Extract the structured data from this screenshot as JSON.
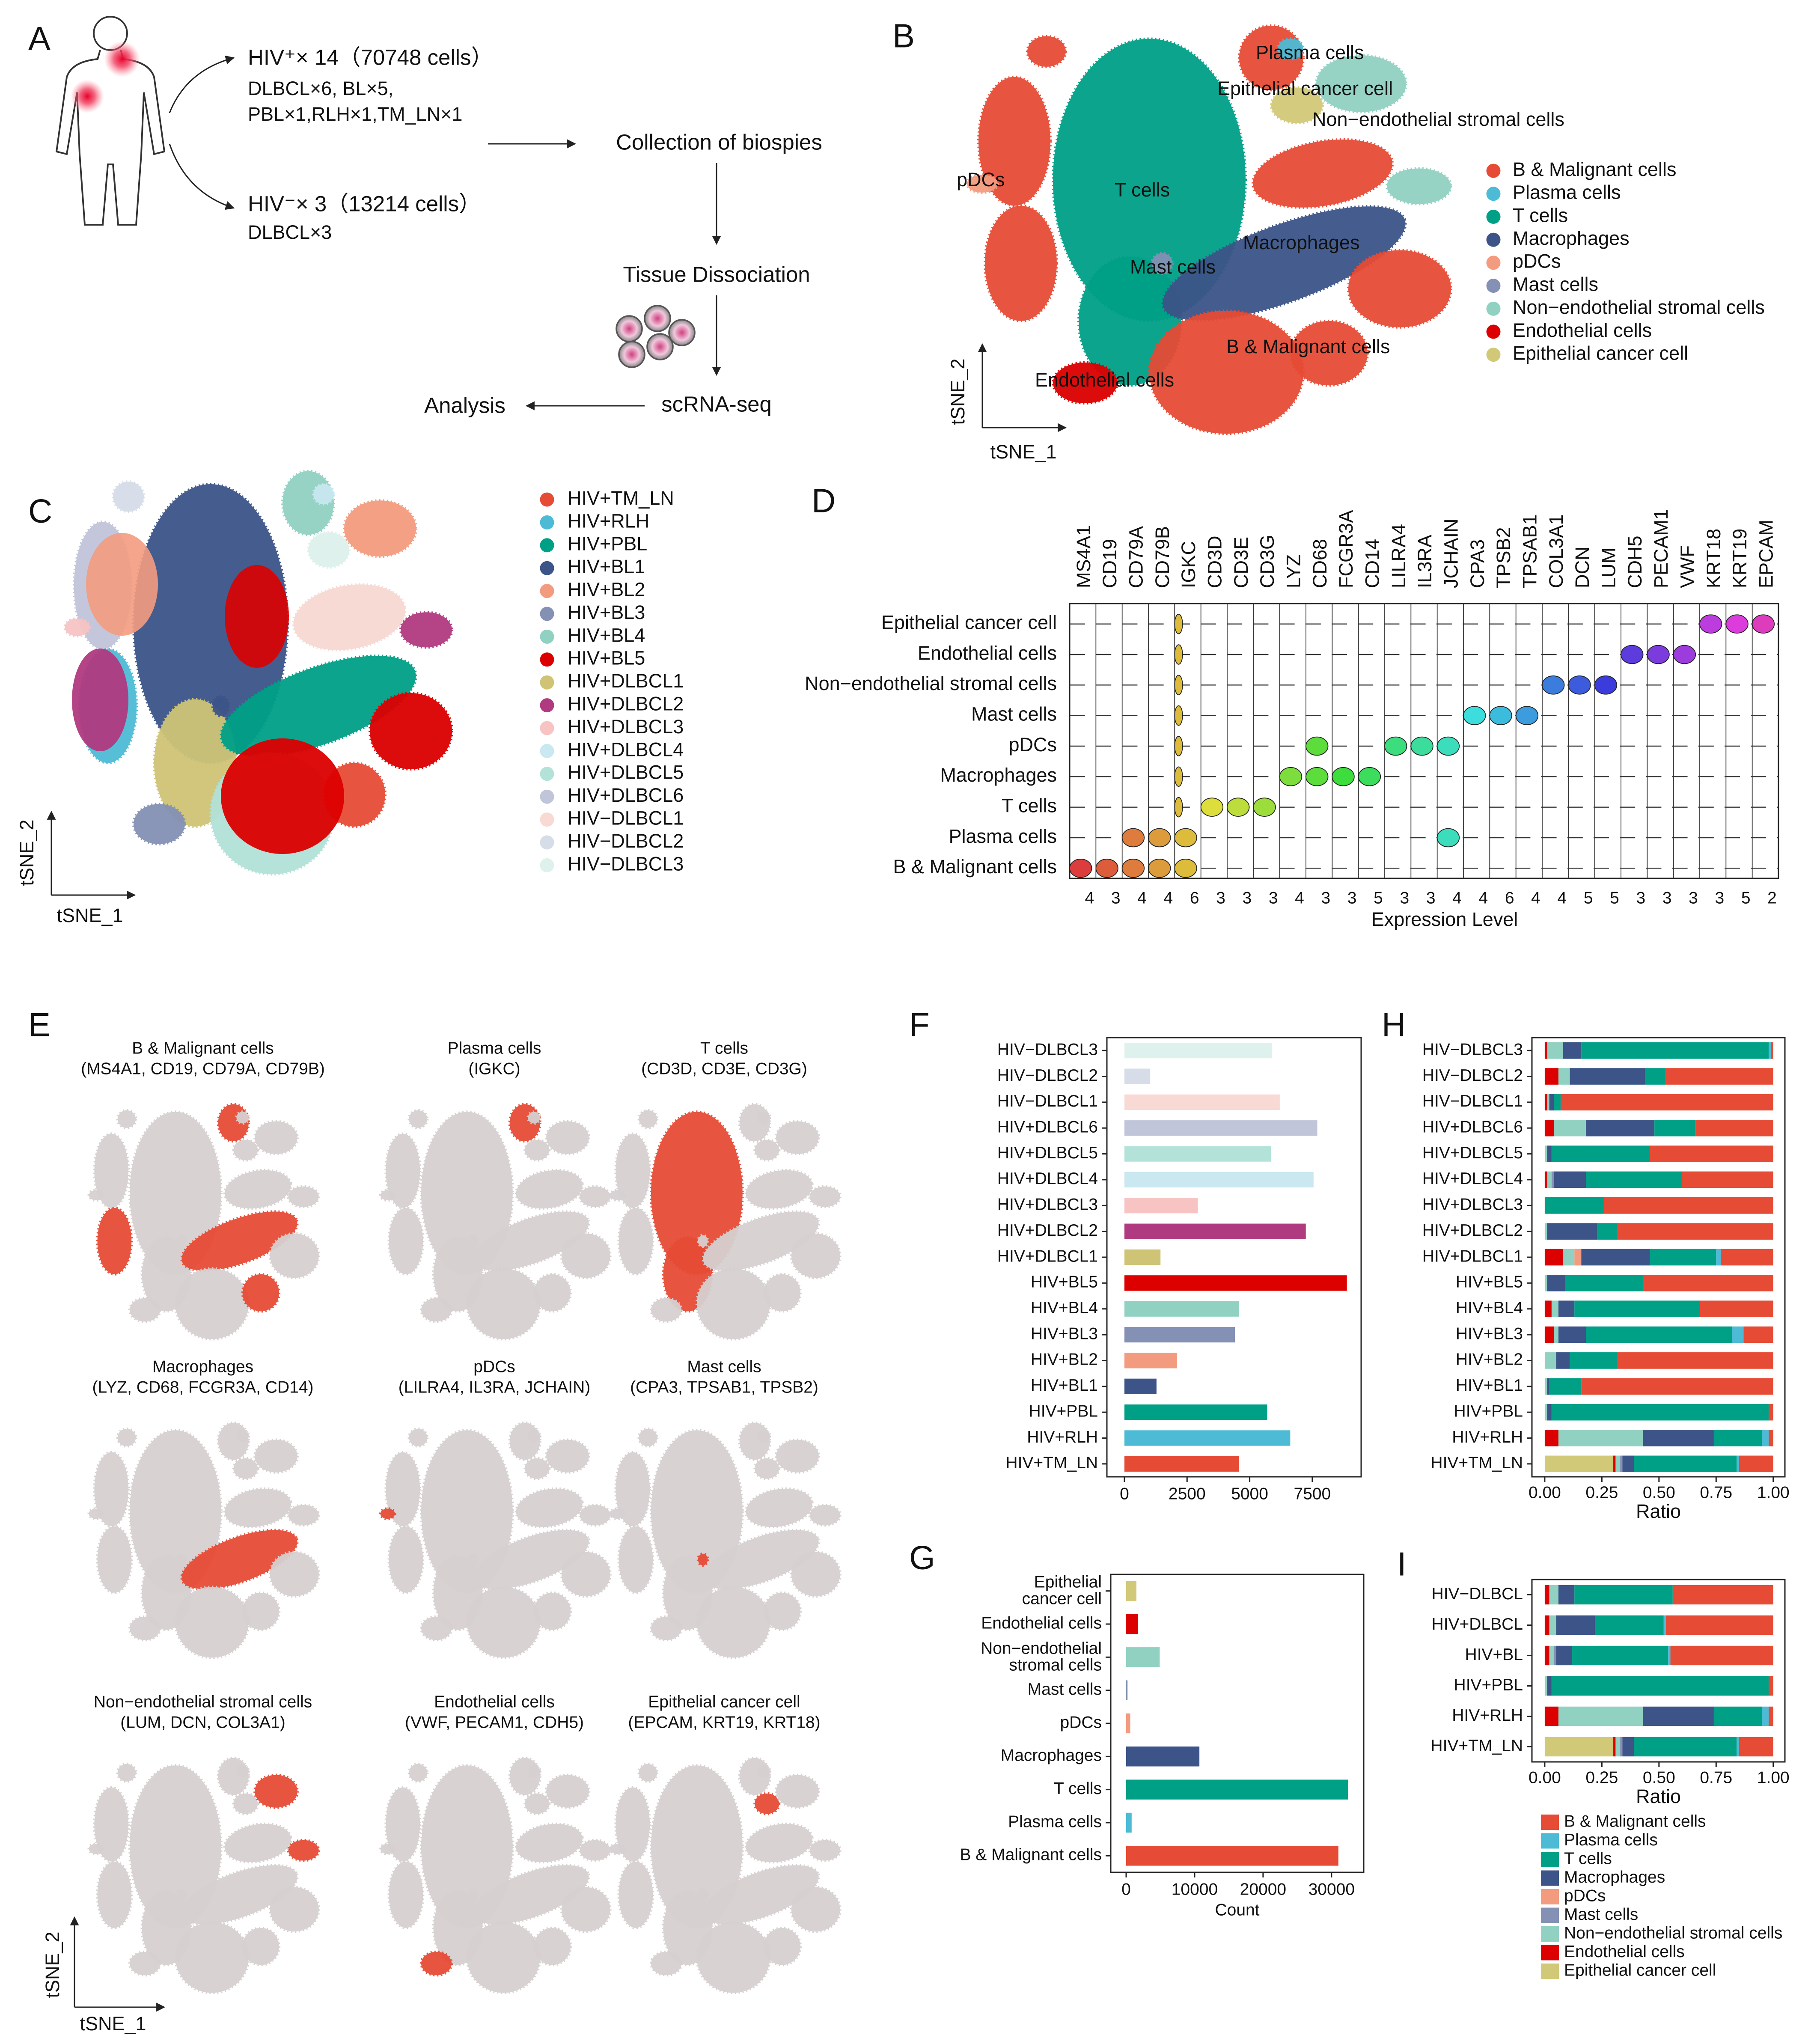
{
  "panel_labels": [
    "A",
    "B",
    "C",
    "D",
    "E",
    "F",
    "G",
    "H",
    "I"
  ],
  "panel_a": {
    "hiv_pos": "HIV⁺× 14（70748 cells）",
    "hiv_pos_detail": [
      "DLBCL×6, BL×5,",
      "PBL×1,RLH×1,TM_LN×1"
    ],
    "hiv_neg": "HIV⁻× 3（13214 cells）",
    "hiv_neg_detail": "DLBCL×3",
    "steps": [
      "Collection of biospies",
      "Tissue Dissociation",
      "scRNA-seq",
      "Analysis"
    ]
  },
  "chart_data": [
    {
      "type": "tsne",
      "xlabel": "tSNE_1",
      "ylabel": "tSNE_2",
      "cluster_labels": [
        "Plasma cells",
        "Epithelial cancer cell",
        "Non−endothelial stromal cells",
        "pDCs",
        "T cells",
        "Macrophages",
        "Mast cells",
        "B & Malignant cells",
        "Endothelial cells"
      ],
      "series": [
        {
          "name": "B & Malignant cells",
          "color": "#e64b35"
        },
        {
          "name": "Plasma cells",
          "color": "#4dbbd5"
        },
        {
          "name": "T cells",
          "color": "#00a087"
        },
        {
          "name": "Macrophages",
          "color": "#3c5488"
        },
        {
          "name": "pDCs",
          "color": "#f39b7f"
        },
        {
          "name": "Mast cells",
          "color": "#8491b4"
        },
        {
          "name": "Non−endothelial stromal cells",
          "color": "#91d1c2"
        },
        {
          "name": "Endothelial cells",
          "color": "#dc0000"
        },
        {
          "name": "Epithelial cancer cell",
          "color": "#d2c978"
        }
      ]
    },
    {
      "type": "tsne",
      "xlabel": "tSNE_1",
      "ylabel": "tSNE_2",
      "series": [
        {
          "name": "HIV+TM_LN",
          "color": "#e64b35"
        },
        {
          "name": "HIV+RLH",
          "color": "#4dbbd5"
        },
        {
          "name": "HIV+PBL",
          "color": "#00a087"
        },
        {
          "name": "HIV+BL1",
          "color": "#3c5488"
        },
        {
          "name": "HIV+BL2",
          "color": "#f39b7f"
        },
        {
          "name": "HIV+BL3",
          "color": "#8491b4"
        },
        {
          "name": "HIV+BL4",
          "color": "#91d1c2"
        },
        {
          "name": "HIV+BL5",
          "color": "#dc0000"
        },
        {
          "name": "HIV+DLBCL1",
          "color": "#cfc476"
        },
        {
          "name": "HIV+DLBCL2",
          "color": "#b03a80"
        },
        {
          "name": "HIV+DLBCL3",
          "color": "#f7c3c3"
        },
        {
          "name": "HIV+DLBCL4",
          "color": "#c9e8f0"
        },
        {
          "name": "HIV+DLBCL5",
          "color": "#b3e2d8"
        },
        {
          "name": "HIV+DLBCL6",
          "color": "#c1c5da"
        },
        {
          "name": "HIV−DLBCL1",
          "color": "#f8d9d3"
        },
        {
          "name": "HIV−DLBCL2",
          "color": "#d6dde8"
        },
        {
          "name": "HIV−DLBCL3",
          "color": "#def1ec"
        }
      ]
    },
    {
      "type": "violin",
      "xlabel": "Expression Level",
      "genes": [
        "MS4A1",
        "CD19",
        "CD79A",
        "CD79B",
        "IGKC",
        "CD3D",
        "CD3E",
        "CD3G",
        "LYZ",
        "CD68",
        "FCGR3A",
        "CD14",
        "LILRA4",
        "IL3RA",
        "JCHAIN",
        "CPA3",
        "TPSB2",
        "TPSAB1",
        "COL3A1",
        "DCN",
        "LUM",
        "CDH5",
        "PECAM1",
        "VWF",
        "KRT18",
        "KRT19",
        "EPCAM"
      ],
      "cell_types": [
        "Epithelial cancer cell",
        "Endothelial cells",
        "Non−endothelial stromal cells",
        "Mast cells",
        "pDCs",
        "Macrophages",
        "T cells",
        "Plasma cells",
        "B & Malignant cells"
      ],
      "axis_max": [
        4,
        3,
        4,
        4,
        6,
        3,
        3,
        3,
        4,
        3,
        3,
        5,
        3,
        3,
        4,
        4,
        6,
        4,
        4,
        5,
        5,
        3,
        3,
        3,
        3,
        5,
        2
      ]
    },
    {
      "type": "feature",
      "xlabel": "tSNE_1",
      "ylabel": "tSNE_2",
      "color": "#e64b35",
      "panels": [
        {
          "title": "B & Malignant cells",
          "genes": "(MS4A1, CD19, CD79A, CD79B)"
        },
        {
          "title": "Plasma cells",
          "genes": "(IGKC)"
        },
        {
          "title": "T cells",
          "genes": "(CD3D, CD3E, CD3G)"
        },
        {
          "title": "Macrophages",
          "genes": "(LYZ, CD68, FCGR3A, CD14)"
        },
        {
          "title": "pDCs",
          "genes": "(LILRA4, IL3RA, JCHAIN)"
        },
        {
          "title": "Mast cells",
          "genes": "(CPA3, TPSAB1, TPSB2)"
        },
        {
          "title": "Non−endothelial stromal cells",
          "genes": "(LUM, DCN, COL3A1)"
        },
        {
          "title": "Endothelial cells",
          "genes": "(VWF, PECAM1, CDH5)"
        },
        {
          "title": "Epithelial cancer cell",
          "genes": "(EPCAM, KRT19, KRT18)"
        }
      ]
    },
    {
      "type": "barh",
      "categories": [
        "HIV−DLBCL3",
        "HIV−DLBCL2",
        "HIV−DLBCL1",
        "HIV+DLBCL6",
        "HIV+DLBCL5",
        "HIV+DLBCL4",
        "HIV+DLBCL3",
        "HIV+DLBCL2",
        "HIV+DLBCL1",
        "HIV+BL5",
        "HIV+BL4",
        "HIV+BL3",
        "HIV+BL2",
        "HIV+BL1",
        "HIV+PBL",
        "HIV+RLH",
        "HIV+TM_LN"
      ],
      "values": [
        5900,
        1030,
        6200,
        7700,
        5850,
        7550,
        2930,
        7240,
        1440,
        8880,
        4570,
        4410,
        2100,
        1280,
        5700,
        6620,
        4570
      ],
      "colors": [
        "#def1ec",
        "#d6dde8",
        "#f8d9d3",
        "#c1c5da",
        "#b3e2d8",
        "#c9e8f0",
        "#f7c3c3",
        "#b03a80",
        "#cfc476",
        "#dc0000",
        "#91d1c2",
        "#8491b4",
        "#f39b7f",
        "#3c5488",
        "#00a087",
        "#4dbbd5",
        "#e64b35"
      ],
      "xlim": [
        -700,
        9450
      ],
      "xticks": [
        0,
        2500,
        5000,
        7500
      ]
    },
    {
      "type": "barh",
      "xlabel": "Count",
      "categories": [
        "Epithelial cancer cell",
        "Endothelial cells",
        "Non−endothelial stromal cells",
        "Mast cells",
        "pDCs",
        "Macrophages",
        "T cells",
        "Plasma cells",
        "B & Malignant cells"
      ],
      "values": [
        1500,
        1700,
        4900,
        200,
        600,
        10700,
        32400,
        800,
        31000
      ],
      "colors": [
        "#d2c978",
        "#dc0000",
        "#91d1c2",
        "#8491b4",
        "#f39b7f",
        "#3c5488",
        "#00a087",
        "#4dbbd5",
        "#e64b35"
      ],
      "xlim": [
        -2250,
        34700
      ],
      "xticks": [
        0,
        10000,
        20000,
        30000
      ]
    },
    {
      "type": "stacked_barh",
      "xlabel": "Ratio",
      "categories": [
        "HIV−DLBCL3",
        "HIV−DLBCL2",
        "HIV−DLBCL1",
        "HIV+DLBCL6",
        "HIV+DLBCL5",
        "HIV+DLBCL4",
        "HIV+DLBCL3",
        "HIV+DLBCL2",
        "HIV+DLBCL1",
        "HIV+BL5",
        "HIV+BL4",
        "HIV+BL3",
        "HIV+BL2",
        "HIV+BL1",
        "HIV+PBL",
        "HIV+RLH",
        "HIV+TM_LN"
      ],
      "series": [
        {
          "name": "B & Malignant cells",
          "color": "#e64b35",
          "values": [
            0.01,
            0.47,
            0.93,
            0.34,
            0.54,
            0.4,
            0.74,
            0.68,
            0.23,
            0.57,
            0.32,
            0.13,
            0.68,
            0.84,
            0.02,
            0.02,
            0.15
          ]
        },
        {
          "name": "Plasma cells",
          "color": "#4dbbd5",
          "values": [
            0.01,
            0,
            0,
            0,
            0,
            0,
            0,
            0,
            0.02,
            0,
            0,
            0.05,
            0,
            0,
            0,
            0.03,
            0.01
          ]
        },
        {
          "name": "T cells",
          "color": "#00a087",
          "values": [
            0.82,
            0.09,
            0.03,
            0.18,
            0.43,
            0.42,
            0.26,
            0.09,
            0.29,
            0.34,
            0.55,
            0.64,
            0.21,
            0.14,
            0.95,
            0.21,
            0.45
          ]
        },
        {
          "name": "Macrophages",
          "color": "#3c5488",
          "values": [
            0.08,
            0.33,
            0.02,
            0.3,
            0.02,
            0.14,
            0,
            0.22,
            0.3,
            0.08,
            0.07,
            0.12,
            0.06,
            0.01,
            0.02,
            0.31,
            0.05
          ]
        },
        {
          "name": "pDCs",
          "color": "#f39b7f",
          "values": [
            0,
            0,
            0,
            0,
            0,
            0,
            0,
            0,
            0.03,
            0,
            0,
            0,
            0,
            0,
            0,
            0,
            0
          ]
        },
        {
          "name": "Mast cells",
          "color": "#8491b4",
          "values": [
            0,
            0,
            0,
            0,
            0,
            0.01,
            0,
            0,
            0,
            0,
            0,
            0,
            0,
            0,
            0,
            0,
            0.01
          ]
        },
        {
          "name": "Non−endothelial stromal cells",
          "color": "#91d1c2",
          "values": [
            0.07,
            0.05,
            0.01,
            0.14,
            0.01,
            0.02,
            0,
            0.01,
            0.05,
            0.01,
            0.03,
            0.02,
            0.05,
            0.01,
            0.01,
            0.37,
            0.02
          ]
        },
        {
          "name": "Endothelial cells",
          "color": "#dc0000",
          "values": [
            0.01,
            0.06,
            0.01,
            0.04,
            0,
            0.01,
            0,
            0,
            0.08,
            0,
            0.03,
            0.04,
            0,
            0,
            0,
            0.06,
            0.01
          ]
        },
        {
          "name": "Epithelial cancer cell",
          "color": "#d2c978",
          "values": [
            0,
            0,
            0,
            0,
            0,
            0,
            0,
            0,
            0,
            0,
            0,
            0,
            0,
            0,
            0,
            0,
            0.3
          ]
        }
      ],
      "xlim": [
        -0.056,
        1.051
      ],
      "xticks": [
        {
          "value": 0,
          "label": "0.00"
        },
        {
          "value": 0.25,
          "label": "0.25"
        },
        {
          "value": 0.5,
          "label": "0.50"
        },
        {
          "value": 0.75,
          "label": "0.75"
        },
        {
          "value": 1,
          "label": "1.00"
        }
      ]
    },
    {
      "type": "stacked_barh",
      "xlabel": "Ratio",
      "legend": "bottom",
      "categories": [
        "HIV−DLBCL",
        "HIV+DLBCL",
        "HIV+BL",
        "HIV+PBL",
        "HIV+RLH",
        "HIV+TM_LN"
      ],
      "series": [
        {
          "name": "B & Malignant cells",
          "color": "#e64b35",
          "values": [
            0.44,
            0.47,
            0.45,
            0.02,
            0.02,
            0.15
          ]
        },
        {
          "name": "Plasma cells",
          "color": "#4dbbd5",
          "values": [
            0,
            0.01,
            0.01,
            0,
            0.03,
            0.01
          ]
        },
        {
          "name": "T cells",
          "color": "#00a087",
          "values": [
            0.43,
            0.3,
            0.42,
            0.95,
            0.21,
            0.45
          ]
        },
        {
          "name": "Macrophages",
          "color": "#3c5488",
          "values": [
            0.07,
            0.17,
            0.07,
            0.02,
            0.31,
            0.05
          ]
        },
        {
          "name": "pDCs",
          "color": "#f39b7f",
          "values": [
            0,
            0,
            0,
            0,
            0,
            0
          ]
        },
        {
          "name": "Mast cells",
          "color": "#8491b4",
          "values": [
            0,
            0,
            0.01,
            0,
            0,
            0.01
          ]
        },
        {
          "name": "Non−endothelial stromal cells",
          "color": "#91d1c2",
          "values": [
            0.04,
            0.03,
            0.02,
            0.01,
            0.37,
            0.02
          ]
        },
        {
          "name": "Endothelial cells",
          "color": "#dc0000",
          "values": [
            0.02,
            0.02,
            0.02,
            0,
            0.06,
            0.01
          ]
        },
        {
          "name": "Epithelial cancer cell",
          "color": "#d2c978",
          "values": [
            0,
            0,
            0,
            0,
            0,
            0.3
          ]
        }
      ],
      "xlim": [
        -0.056,
        1.051
      ],
      "xticks": [
        {
          "value": 0,
          "label": "0.00"
        },
        {
          "value": 0.25,
          "label": "0.25"
        },
        {
          "value": 0.5,
          "label": "0.50"
        },
        {
          "value": 0.75,
          "label": "0.75"
        },
        {
          "value": 1,
          "label": "1.00"
        }
      ]
    }
  ]
}
